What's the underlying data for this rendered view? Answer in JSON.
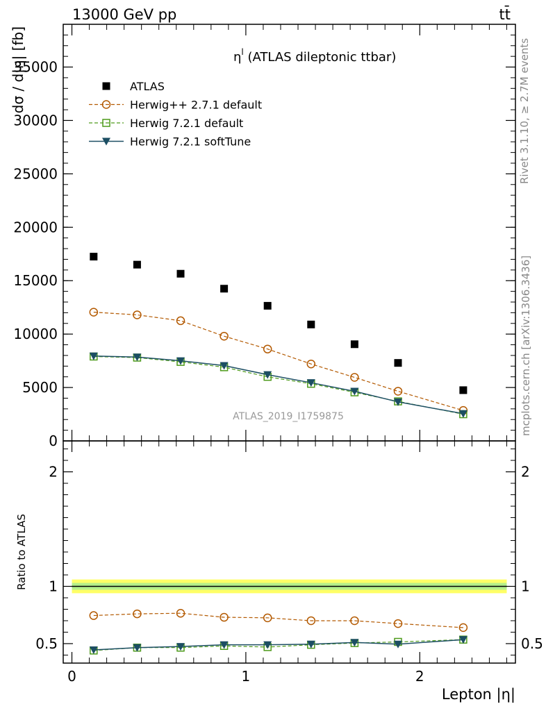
{
  "header": {
    "energy_label": "13000 GeV pp",
    "process_label": "tt̄"
  },
  "side_labels": {
    "rivet": "Rivet 3.1.10, ≥ 2.7M events",
    "mcplots": "mcplots.cern.ch [arXiv:1306.3436]"
  },
  "analysis_id": "ATLAS_2019_I1759875",
  "chart_data": [
    {
      "type": "scatter",
      "title": "η^l (ATLAS dileptonic ttbar)",
      "title_main": "η",
      "title_sup": "l",
      "title_rest": " (ATLAS dileptonic ttbar)",
      "xlabel": "Lepton |η|",
      "ylabel": "dσ / d|η| [fb]",
      "xlim": [
        -0.05,
        2.55
      ],
      "ylim": [
        0,
        39000
      ],
      "yticks": [
        0,
        5000,
        10000,
        15000,
        20000,
        25000,
        30000,
        35000
      ],
      "ytick_labels": [
        "0",
        "5000",
        "10000",
        "15000",
        "20000",
        "25000",
        "30000",
        "35000"
      ],
      "x": [
        0.125,
        0.375,
        0.625,
        0.875,
        1.125,
        1.375,
        1.625,
        1.875,
        2.25
      ],
      "series": [
        {
          "name": "ATLAS",
          "values": [
            17250,
            16500,
            15650,
            14250,
            12650,
            10900,
            9050,
            7300,
            4750
          ],
          "color": "#000000",
          "marker": "filled-square",
          "line": "none"
        },
        {
          "name": "Herwig++ 2.7.1 default",
          "values": [
            12050,
            11800,
            11250,
            9800,
            8600,
            7200,
            5950,
            4650,
            2850
          ],
          "color": "#b35900",
          "marker": "open-circle",
          "line": "dashed"
        },
        {
          "name": "Herwig 7.2.1 default",
          "values": [
            7900,
            7800,
            7400,
            6900,
            6000,
            5350,
            4550,
            3700,
            2500
          ],
          "color": "#4d9a1a",
          "marker": "open-square",
          "line": "dashed"
        },
        {
          "name": "Herwig 7.2.1 softTune",
          "values": [
            7950,
            7850,
            7500,
            7050,
            6200,
            5450,
            4650,
            3650,
            2550
          ],
          "color": "#1c4e63",
          "marker": "filled-triangle-down",
          "line": "solid"
        }
      ]
    },
    {
      "type": "scatter",
      "title": "",
      "ylabel": "Ratio to ATLAS",
      "xlabel": "Lepton |η|",
      "xlim": [
        -0.05,
        2.55
      ],
      "ylim": [
        0.33,
        2.27
      ],
      "xticks": [
        0,
        1,
        2
      ],
      "xtick_labels": [
        "0",
        "1",
        "2"
      ],
      "yticks": [
        0.5,
        1,
        2
      ],
      "ytick_labels": [
        "0.5",
        "1",
        "2"
      ],
      "x": [
        0.125,
        0.375,
        0.625,
        0.875,
        1.125,
        1.375,
        1.625,
        1.875,
        2.25
      ],
      "band_inner": 0.03,
      "band_outer": 0.06,
      "series": [
        {
          "name": "Herwig++ 2.7.1 default",
          "values": [
            0.745,
            0.76,
            0.765,
            0.73,
            0.725,
            0.7,
            0.7,
            0.675,
            0.64
          ],
          "color": "#b35900",
          "marker": "open-circle",
          "line": "dashed"
        },
        {
          "name": "Herwig 7.2.1 default",
          "values": [
            0.44,
            0.465,
            0.465,
            0.48,
            0.47,
            0.49,
            0.505,
            0.515,
            0.535
          ],
          "color": "#4d9a1a",
          "marker": "open-square",
          "line": "dashed"
        },
        {
          "name": "Herwig 7.2.1 softTune",
          "values": [
            0.445,
            0.465,
            0.475,
            0.49,
            0.49,
            0.495,
            0.51,
            0.495,
            0.535
          ],
          "color": "#1c4e63",
          "marker": "filled-triangle-down",
          "line": "solid"
        }
      ]
    }
  ]
}
